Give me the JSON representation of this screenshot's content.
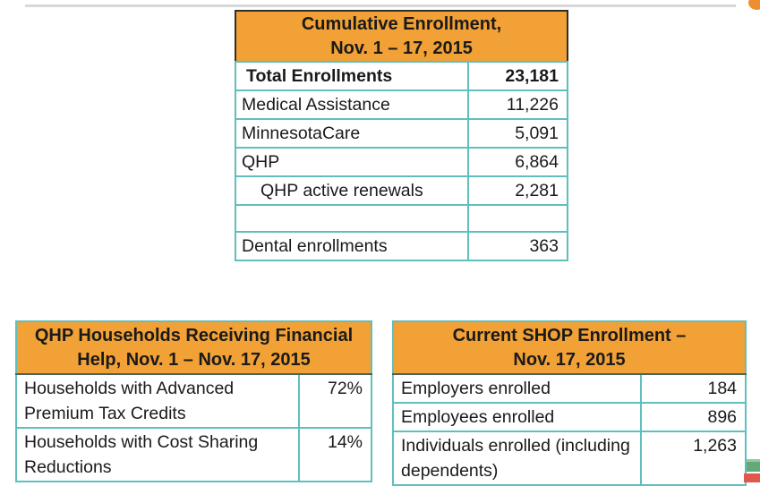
{
  "page": {
    "background": "#ffffff",
    "top_rule_color": "#d8d8d8",
    "header_orange": "#f1a136",
    "border_teal": "#5fbfbf",
    "accent_dot_color": "#ef8e30",
    "logo_green": "#63aa78",
    "logo_red": "#e2574c"
  },
  "cumulative_table": {
    "title_line1": "Cumulative Enrollment,",
    "title_line2": "Nov. 1 – 17, 2015",
    "rows": [
      {
        "label": "Total Enrollments",
        "value": "23,181",
        "bold": true
      },
      {
        "label": "Medical Assistance",
        "value": "11,226"
      },
      {
        "label": "MinnesotaCare",
        "value": "5,091"
      },
      {
        "label": "QHP",
        "value": "6,864"
      },
      {
        "label": "QHP active renewals",
        "value": "2,281",
        "indent": true
      },
      {
        "label": "",
        "value": ""
      },
      {
        "label": "Dental enrollments",
        "value": "363"
      }
    ]
  },
  "financial_help_table": {
    "title_line1": "QHP Households Receiving Financial",
    "title_line2": "Help, Nov. 1 – Nov. 17, 2015",
    "rows": [
      {
        "label": "Households with Advanced Premium Tax Credits",
        "value": "72%"
      },
      {
        "label": "Households with Cost Sharing Reductions",
        "value": "14%"
      }
    ]
  },
  "shop_table": {
    "title_line1": "Current SHOP Enrollment –",
    "title_line2": "Nov. 17, 2015",
    "rows": [
      {
        "label": "Employers enrolled",
        "value": "184",
        "lines": "single"
      },
      {
        "label": "Employees enrolled",
        "value": "896",
        "lines": "single"
      },
      {
        "label": "Individuals enrolled (including dependents)",
        "value": "1,263",
        "lines": "double"
      }
    ]
  }
}
